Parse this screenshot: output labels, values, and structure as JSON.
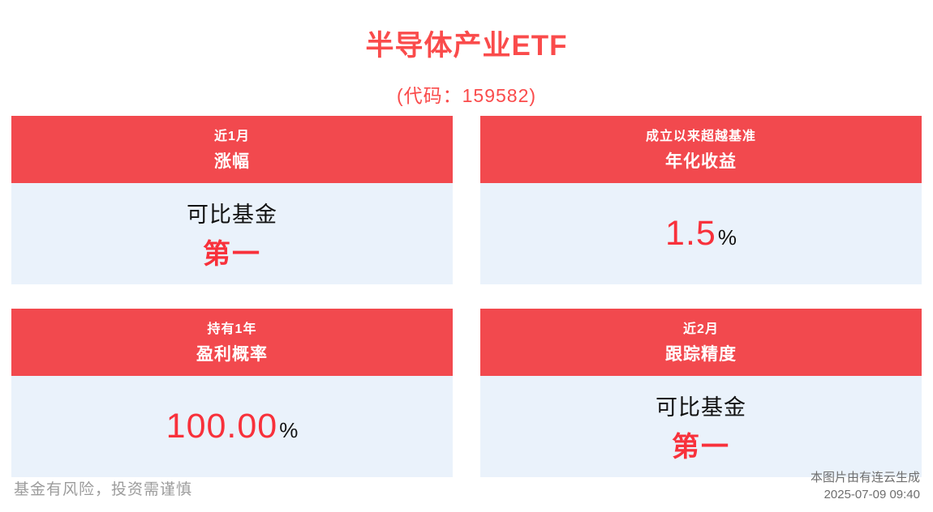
{
  "header": {
    "title": "半导体产业ETF",
    "subtitle": "(代码：159582)"
  },
  "cards": [
    {
      "header_line1": "近1月",
      "header_line2": "涨幅",
      "body_line1": "可比基金",
      "body_line2": "第一"
    },
    {
      "header_line1": "成立以来超越基准",
      "header_line2": "年化收益",
      "value": "1.5",
      "unit": "%"
    },
    {
      "header_line1": "持有1年",
      "header_line2": "盈利概率",
      "value": "100.00",
      "unit": "%"
    },
    {
      "header_line1": "近2月",
      "header_line2": "跟踪精度",
      "body_line1": "可比基金",
      "body_line2": "第一"
    }
  ],
  "footer": {
    "disclaimer": "基金有风险，投资需谨慎",
    "source": "本图片由有连云生成",
    "timestamp": "2025-07-09 09:40"
  },
  "colors": {
    "accent_red": "#f2494e",
    "value_red": "#f8313b",
    "card_body_bg": "#eaf2fb",
    "footer_gray": "#9c9c9c"
  }
}
